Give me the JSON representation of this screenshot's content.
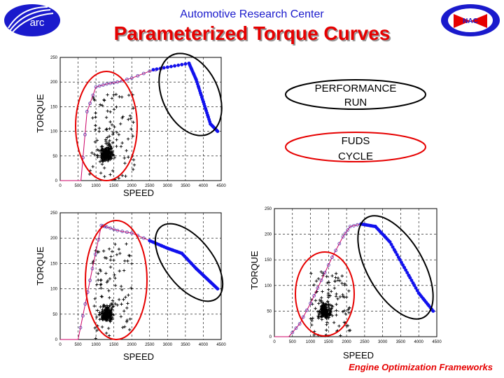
{
  "header": {
    "subtitle": "Automotive Research Center",
    "title": "Parameterized Torque Curves",
    "logo_left_text": "arc",
    "logo_right_text": "NAC"
  },
  "legend": {
    "performance": "PERFORMANCE RUN",
    "performance_line1": "PERFORMANCE",
    "performance_line2": "RUN",
    "fuds": "FUDS CYCLE",
    "fuds_line1": "FUDS",
    "fuds_line2": "CYCLE",
    "performance_color": "#000000",
    "fuds_color": "#e60000"
  },
  "footer": {
    "text": "Engine Optimization Frameworks"
  },
  "colors": {
    "curve": "#cc0066",
    "performance_points": "#1111ee",
    "fuds_points": "#000000"
  },
  "chart_data": [
    {
      "type": "scatter",
      "xlabel": "SPEED",
      "ylabel": "TORQUE",
      "xlim": [
        0,
        4500
      ],
      "ylim": [
        0,
        250
      ],
      "xticks": [
        0,
        500,
        1000,
        1500,
        2000,
        2500,
        3000,
        3500,
        4000,
        4500
      ],
      "yticks": [
        0,
        50,
        100,
        150,
        200,
        250
      ],
      "grid": true,
      "curve": [
        [
          0,
          0
        ],
        [
          580,
          0
        ],
        [
          750,
          140
        ],
        [
          1000,
          190
        ],
        [
          1300,
          196
        ],
        [
          1600,
          200
        ],
        [
          2000,
          208
        ],
        [
          2500,
          222
        ],
        [
          3000,
          230
        ],
        [
          3600,
          238
        ],
        [
          3800,
          205
        ],
        [
          4000,
          160
        ],
        [
          4200,
          115
        ],
        [
          4400,
          100
        ]
      ],
      "performance_run": {
        "x_range": [
          2600,
          4400
        ],
        "path": [
          [
            2600,
            225
          ],
          [
            3600,
            238
          ],
          [
            3800,
            205
          ],
          [
            4000,
            160
          ],
          [
            4200,
            115
          ],
          [
            4400,
            100
          ]
        ]
      },
      "fuds_cycle": {
        "center": [
          1300,
          45
        ],
        "x_range": [
          500,
          2100
        ],
        "y_range": [
          0,
          210
        ]
      }
    },
    {
      "type": "scatter",
      "xlabel": "SPEED",
      "ylabel": "TORQUE",
      "xlim": [
        0,
        4500
      ],
      "ylim": [
        0,
        250
      ],
      "xticks": [
        0,
        500,
        1000,
        1500,
        2000,
        2500,
        3000,
        3500,
        4000,
        4500
      ],
      "yticks": [
        0,
        50,
        100,
        150,
        200,
        250
      ],
      "grid": true,
      "curve": [
        [
          0,
          0
        ],
        [
          500,
          0
        ],
        [
          700,
          70
        ],
        [
          900,
          140
        ],
        [
          1150,
          225
        ],
        [
          1300,
          222
        ],
        [
          1600,
          215
        ],
        [
          2000,
          210
        ],
        [
          2500,
          195
        ],
        [
          3000,
          180
        ],
        [
          3400,
          170
        ],
        [
          3800,
          140
        ],
        [
          4100,
          120
        ],
        [
          4400,
          100
        ]
      ],
      "performance_run": {
        "x_range": [
          2500,
          4400
        ],
        "path": [
          [
            2500,
            195
          ],
          [
            3000,
            180
          ],
          [
            3400,
            170
          ],
          [
            3800,
            140
          ],
          [
            4100,
            120
          ],
          [
            4400,
            100
          ]
        ]
      },
      "fuds_cycle": {
        "center": [
          1300,
          40
        ],
        "x_range": [
          600,
          2000
        ],
        "y_range": [
          0,
          225
        ]
      }
    },
    {
      "type": "scatter",
      "xlabel": "SPEED",
      "ylabel": "TORQUE",
      "xlim": [
        0,
        4500
      ],
      "ylim": [
        0,
        250
      ],
      "xticks": [
        0,
        500,
        1000,
        1500,
        2000,
        2500,
        3000,
        3500,
        4000,
        4500
      ],
      "yticks": [
        0,
        50,
        100,
        150,
        200,
        250
      ],
      "grid": true,
      "curve": [
        [
          0,
          0
        ],
        [
          400,
          0
        ],
        [
          700,
          25
        ],
        [
          1000,
          65
        ],
        [
          1300,
          110
        ],
        [
          1600,
          155
        ],
        [
          1900,
          195
        ],
        [
          2100,
          215
        ],
        [
          2400,
          220
        ],
        [
          2800,
          215
        ],
        [
          3200,
          185
        ],
        [
          3600,
          135
        ],
        [
          4000,
          85
        ],
        [
          4400,
          50
        ]
      ],
      "performance_run": {
        "x_range": [
          2400,
          4400
        ],
        "path": [
          [
            2400,
            220
          ],
          [
            2800,
            215
          ],
          [
            3200,
            185
          ],
          [
            3600,
            135
          ],
          [
            4000,
            85
          ],
          [
            4400,
            50
          ]
        ]
      },
      "fuds_cycle": {
        "center": [
          1400,
          40
        ],
        "x_range": [
          700,
          2100
        ],
        "y_range": [
          0,
          150
        ]
      }
    }
  ]
}
